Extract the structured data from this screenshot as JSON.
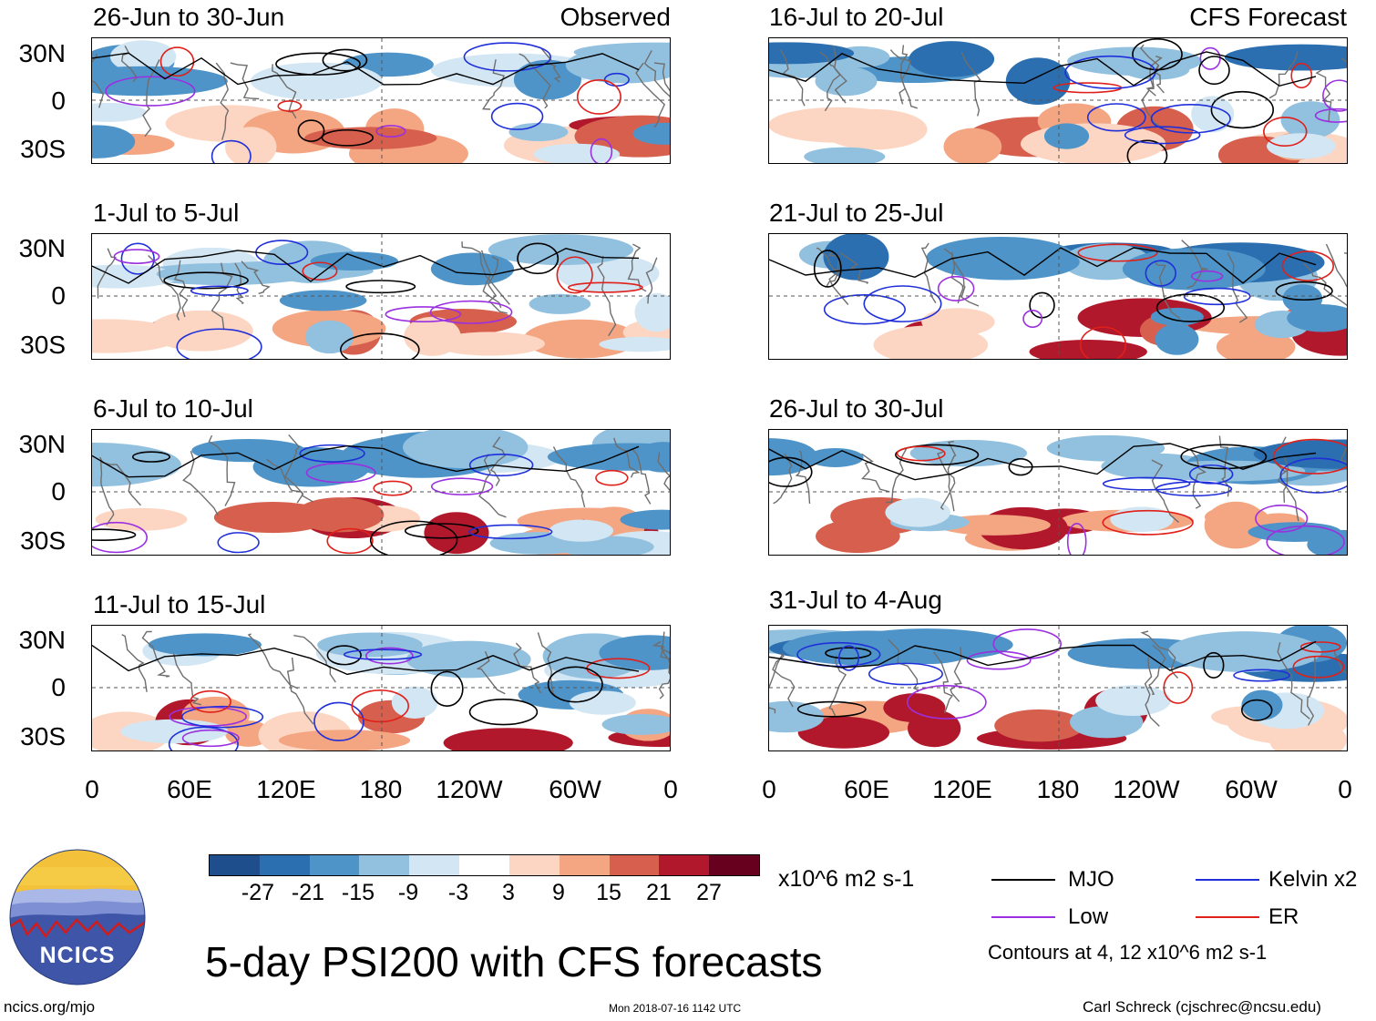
{
  "left_tag": "Observed",
  "right_tag": "CFS Forecast",
  "panels_left": [
    {
      "title": "26-Jun to 30-Jun"
    },
    {
      "title": "1-Jul to 5-Jul"
    },
    {
      "title": "6-Jul to 10-Jul"
    },
    {
      "title": "11-Jul to 15-Jul"
    }
  ],
  "panels_right": [
    {
      "title": "16-Jul to 20-Jul"
    },
    {
      "title": "21-Jul to 25-Jul"
    },
    {
      "title": "26-Jul to 30-Jul"
    },
    {
      "title": "31-Jul to 4-Aug"
    }
  ],
  "lat_labels": [
    "30N",
    "0",
    "30S"
  ],
  "lon_labels": [
    "0",
    "60E",
    "120E",
    "180",
    "120W",
    "60W",
    "0"
  ],
  "colorbar": {
    "levels": [
      "-27",
      "-21",
      "-15",
      "-9",
      "-3",
      "3",
      "9",
      "15",
      "21",
      "27"
    ],
    "colors": [
      "#1f4e8c",
      "#2b6fb0",
      "#4e94c8",
      "#92c1e0",
      "#d3e6f3",
      "#ffffff",
      "#fcd6c2",
      "#f4a582",
      "#d6604d",
      "#b2182b",
      "#67001f"
    ],
    "units": "x10^6 m2 s-1"
  },
  "legend": {
    "items": [
      {
        "label": "MJO",
        "color": "#000000"
      },
      {
        "label": "Kelvin x2",
        "color": "#1f2fd9"
      },
      {
        "label": "Low",
        "color": "#9b30e0"
      },
      {
        "label": "ER",
        "color": "#e0201a"
      }
    ],
    "contour_note": "Contours at 4, 12 x10^6 m2 s-1"
  },
  "main_title": "5-day PSI200 with CFS forecasts",
  "logo_text": "NCICS",
  "footer": {
    "url": "ncics.org/mjo",
    "timestamp": "Mon 2018-07-16 1142 UTC",
    "credit": "Carl Schreck (cjschrec@ncsu.edu)"
  }
}
